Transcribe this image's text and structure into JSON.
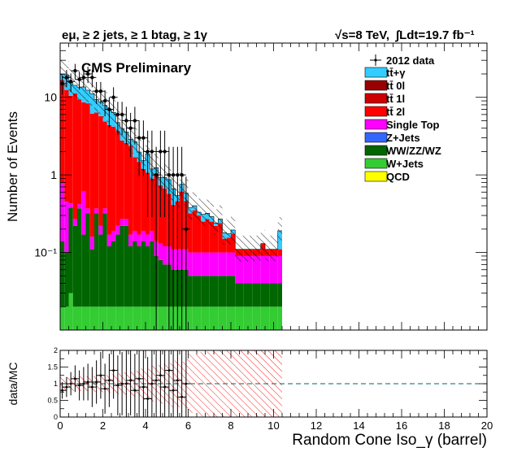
{
  "header": {
    "channel": "eμ, ≥ 2 jets, ≥ 1 btag, ≥ 1γ",
    "energy": "√s=8 TeV,",
    "lumi": "∫Ldt=19.7 fb⁻¹",
    "preliminary": "CMS Preliminary"
  },
  "legend": {
    "data": "2012 data",
    "ttgamma": "tt̄+γ",
    "tt0l": "tt̄ 0l",
    "tt1l": "tt̄ 1l",
    "tt2l": "tt̄ 2l",
    "singletop": "Single Top",
    "zjets": "Z+Jets",
    "diboson": "WW/ZZ/WZ",
    "wjets": "W+Jets",
    "qcd": "QCD"
  },
  "colors": {
    "ttgamma": "#33ccff",
    "tt0l": "#990000",
    "tt1l": "#cc0000",
    "tt2l": "#ff0000",
    "singletop": "#ff00ff",
    "zjets": "#3366ff",
    "diboson": "#006600",
    "wjets": "#33cc33",
    "qcd": "#ffff00"
  },
  "chart_data": [
    {
      "type": "bar",
      "stacked": true,
      "log_y": true,
      "ylabel": "Number of Events",
      "xlim": [
        0,
        20
      ],
      "ylim": [
        0.01,
        50
      ],
      "y_ticks": [
        "10",
        "1",
        "10⁻¹"
      ],
      "bin_width": 0.2,
      "bins": [
        0.0,
        0.2,
        0.4,
        0.6,
        0.8,
        1.0,
        1.2,
        1.4,
        1.6,
        1.8,
        2.0,
        2.2,
        2.4,
        2.6,
        2.8,
        3.0,
        3.2,
        3.4,
        3.6,
        3.8,
        4.0,
        4.2,
        4.4,
        4.6,
        4.8,
        5.0,
        5.2,
        5.4,
        5.6,
        5.8,
        6.0,
        6.2,
        6.4,
        6.6,
        6.8,
        7.0,
        7.2,
        7.4,
        7.6,
        7.8,
        8.0,
        8.2,
        8.4,
        8.6,
        8.8,
        9.0,
        9.2,
        9.4,
        9.6,
        9.8,
        10.0,
        10.2
      ],
      "series": [
        {
          "name": "W+Jets",
          "color": "#33cc33",
          "values": [
            0.02,
            0.02,
            0.03,
            0.02,
            0.02,
            0.02,
            0.02,
            0.02,
            0.02,
            0.02,
            0.02,
            0.02,
            0.02,
            0.02,
            0.02,
            0.02,
            0.02,
            0.02,
            0.02,
            0.02,
            0.02,
            0.02,
            0.02,
            0.02,
            0.02,
            0.02,
            0.02,
            0.02,
            0.02,
            0.02,
            0.02,
            0.02,
            0.02,
            0.02,
            0.02,
            0.02,
            0.02,
            0.02,
            0.02,
            0.02,
            0.02,
            0.02,
            0.02,
            0.02,
            0.02,
            0.02,
            0.02,
            0.02,
            0.02,
            0.02,
            0.02,
            0.02
          ]
        },
        {
          "name": "WW/ZZ/WZ",
          "color": "#006600",
          "values": [
            0.12,
            0.08,
            0.35,
            0.2,
            0.35,
            0.15,
            0.3,
            0.09,
            0.3,
            0.15,
            0.3,
            0.1,
            0.12,
            0.15,
            0.2,
            0.2,
            0.1,
            0.12,
            0.1,
            0.12,
            0.1,
            0.12,
            0.07,
            0.06,
            0.05,
            0.05,
            0.04,
            0.04,
            0.04,
            0.04,
            0.03,
            0.03,
            0.03,
            0.03,
            0.03,
            0.03,
            0.03,
            0.03,
            0.03,
            0.03,
            0.03,
            0.02,
            0.02,
            0.02,
            0.02,
            0.02,
            0.02,
            0.02,
            0.02,
            0.02,
            0.02,
            0.02
          ]
        },
        {
          "name": "Single Top",
          "color": "#ff00ff",
          "values": [
            0.65,
            0.35,
            0.05,
            0.05,
            0.05,
            0.45,
            0.05,
            0.05,
            0.05,
            0.05,
            0.05,
            0.05,
            0.05,
            0.05,
            0.05,
            0.05,
            0.05,
            0.05,
            0.05,
            0.05,
            0.05,
            0.05,
            0.05,
            0.05,
            0.05,
            0.05,
            0.05,
            0.05,
            0.05,
            0.05,
            0.05,
            0.05,
            0.05,
            0.05,
            0.05,
            0.05,
            0.05,
            0.05,
            0.05,
            0.05,
            0.05,
            0.05,
            0.05,
            0.05,
            0.05,
            0.05,
            0.05,
            0.05,
            0.05,
            0.05,
            0.05,
            0.05
          ]
        },
        {
          "name": "tt̄ 2l",
          "color": "#ff0000",
          "values": [
            16,
            12,
            10,
            11,
            9,
            8,
            8,
            6,
            6,
            5.5,
            4.5,
            4.2,
            4.0,
            3.5,
            2.5,
            2.3,
            2.2,
            1.5,
            1.3,
            1.0,
            0.9,
            0.7,
            0.9,
            0.6,
            0.55,
            0.45,
            0.3,
            0.35,
            0.5,
            0.35,
            0.22,
            0.25,
            0.2,
            0.15,
            0.17,
            0.15,
            0.12,
            0.14,
            0.05,
            0.055,
            0.075,
            0.02,
            0.02,
            0.02,
            0.02,
            0.02,
            0.02,
            0.04,
            0.02,
            0.02,
            0.02,
            0.02
          ]
        },
        {
          "name": "tt̄+γ",
          "color": "#33ccff",
          "values": [
            3,
            7,
            5,
            3,
            4,
            5,
            4,
            5,
            3,
            3,
            3,
            2.5,
            2.2,
            1.0,
            1.2,
            1.0,
            0.5,
            1.0,
            0.5,
            0.35,
            0.8,
            0.3,
            0.2,
            0.2,
            0.25,
            0.3,
            0.25,
            0.08,
            0.15,
            0.12,
            0.06,
            0.05,
            0.03,
            0.06,
            0.05,
            0.04,
            0.02,
            0.03,
            0.03,
            0.02,
            0.02,
            0.0,
            0.0,
            0.0,
            0.0,
            0.0,
            0.0,
            0.0,
            0.0,
            0.0,
            0.0,
            0.08
          ]
        }
      ],
      "data": {
        "name": "2012 data",
        "x": [
          0.1,
          0.3,
          0.5,
          0.7,
          0.9,
          1.1,
          1.3,
          1.5,
          1.7,
          1.9,
          2.1,
          2.3,
          2.5,
          2.7,
          2.9,
          3.1,
          3.3,
          3.5,
          3.7,
          3.9,
          4.1,
          4.3,
          4.5,
          4.7,
          4.9,
          5.1,
          5.3,
          5.5,
          5.7,
          5.9
        ],
        "y": [
          15,
          18,
          16,
          22,
          17,
          18,
          20,
          18,
          12,
          12,
          9,
          7,
          10,
          6,
          6,
          5,
          4,
          5,
          3,
          3,
          2,
          2,
          1,
          2,
          2,
          1,
          1,
          1,
          1,
          0.2
        ]
      }
    },
    {
      "type": "scatter",
      "ylabel": "data/MC",
      "xlabel": "Random Cone Iso_γ (barrel)",
      "xlim": [
        0,
        20
      ],
      "ylim": [
        0,
        2
      ],
      "x_ticks": [
        0,
        2,
        4,
        6,
        8,
        10,
        12,
        14,
        16,
        18,
        20
      ],
      "y_ticks": [
        0,
        0.5,
        1,
        1.5,
        2
      ],
      "reference_line": 1,
      "x": [
        0.1,
        0.3,
        0.5,
        0.7,
        0.9,
        1.1,
        1.3,
        1.5,
        1.7,
        1.9,
        2.1,
        2.3,
        2.5,
        2.7,
        2.9,
        3.1,
        3.3,
        3.5,
        3.7,
        3.9,
        4.1,
        4.3,
        4.5,
        4.7,
        4.9,
        5.1,
        5.3,
        5.5,
        5.7,
        5.9
      ],
      "y": [
        0.8,
        0.9,
        1.0,
        1.15,
        0.95,
        1.0,
        1.05,
        0.9,
        1.05,
        1.25,
        0.85,
        1.1,
        1.4,
        0.95,
        1.0,
        1.0,
        1.1,
        0.8,
        1.15,
        0.9,
        0.55,
        1.0,
        1.1,
        1.25,
        0.9,
        1.4,
        0.8,
        1.1,
        0.6,
        1.0
      ]
    }
  ]
}
